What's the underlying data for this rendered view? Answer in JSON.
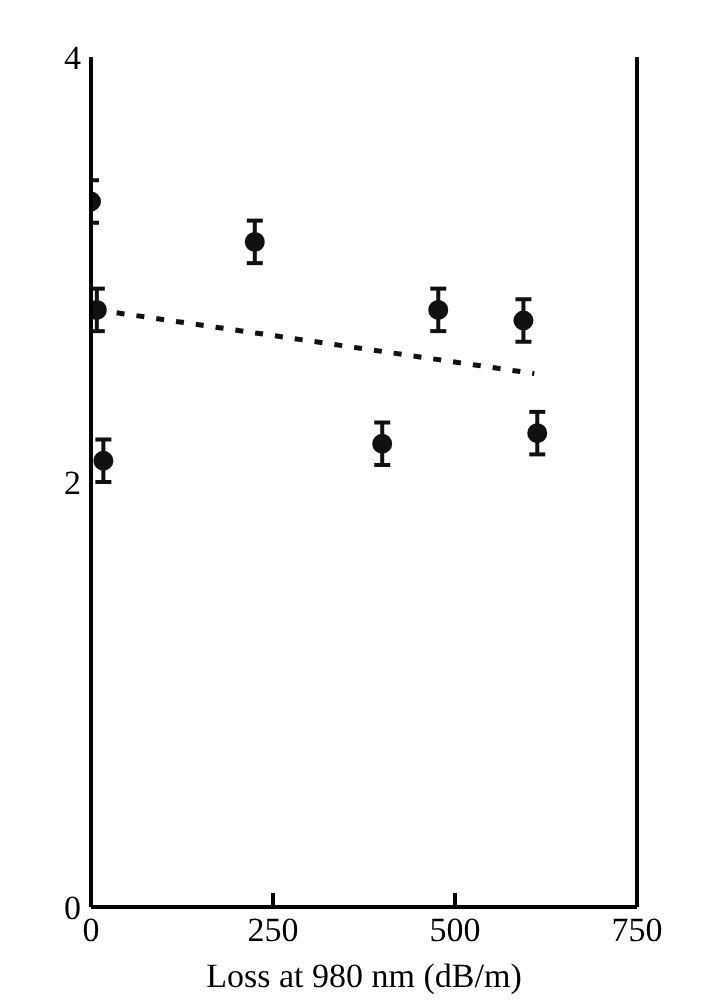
{
  "chart_data": {
    "type": "scatter",
    "xlabel": "Loss at 980 nm (dB/m)",
    "xlim": [
      0,
      750
    ],
    "xticks": [
      0,
      250,
      500,
      750
    ],
    "ylim": [
      0,
      4
    ],
    "yticks": [
      0,
      2,
      4
    ],
    "grid": false,
    "series": [
      {
        "color": "#111111",
        "marker": "circle",
        "x": [
          0,
          8,
          17,
          225,
          400,
          477,
          594,
          613
        ],
        "values": [
          3.32,
          2.81,
          2.1,
          3.13,
          2.18,
          2.81,
          2.76,
          2.23
        ],
        "errors": [
          0.1,
          0.1,
          0.1,
          0.1,
          0.1,
          0.1,
          0.1,
          0.1
        ]
      },
      {
        "type": "line",
        "color": "#111111",
        "line_style": "dashed",
        "x": [
          8,
          609
        ],
        "values": [
          2.81,
          2.51
        ]
      }
    ]
  }
}
